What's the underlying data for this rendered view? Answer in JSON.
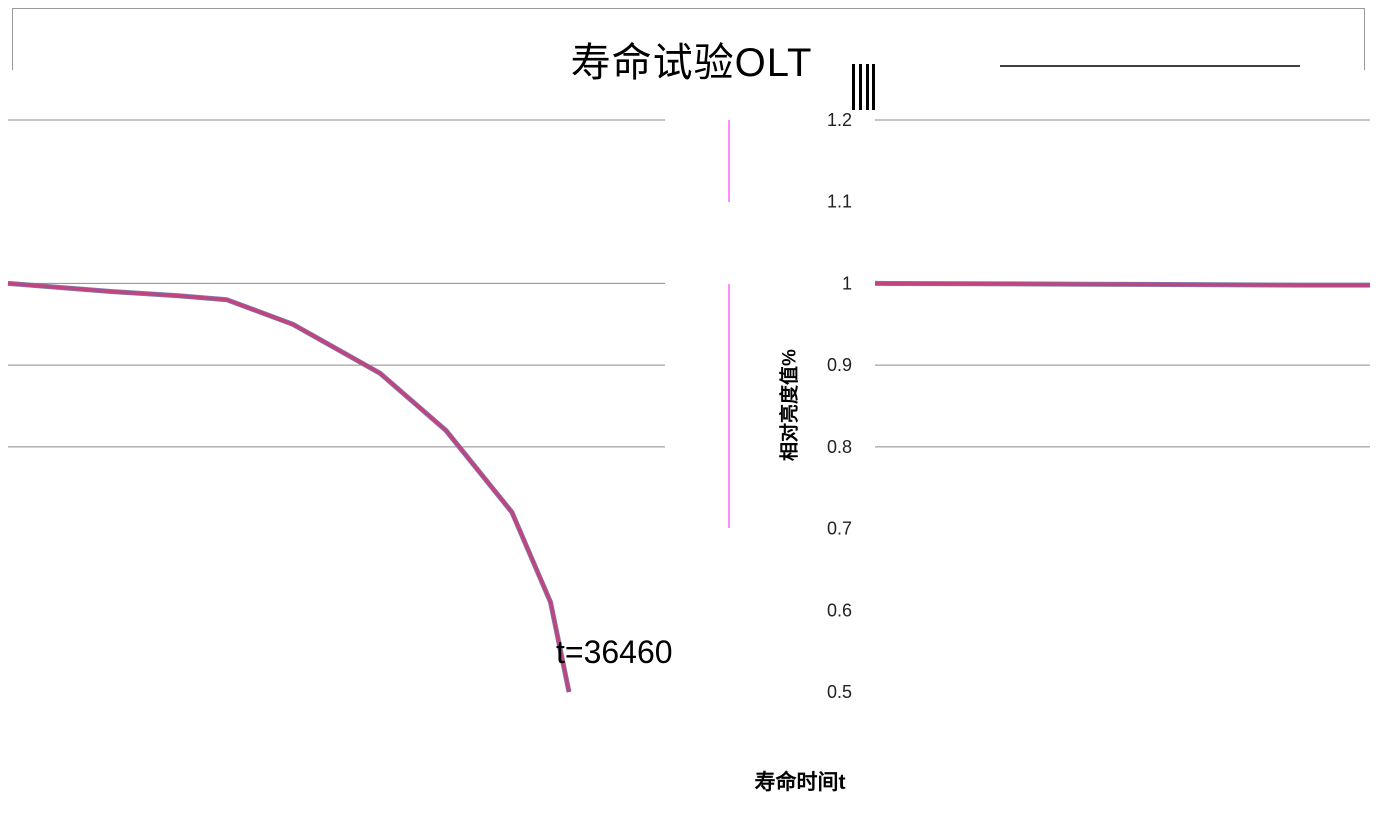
{
  "title": "寿命试验OLT",
  "annotation": "t=36460",
  "colors": {
    "series": "#c0447f",
    "shadow": "#7a7fb0",
    "grid": "#8c8c8c",
    "divider": "#ff66ff"
  },
  "chart_data": [
    {
      "type": "line",
      "panel": "left",
      "xscale": "log",
      "x": [
        100,
        300,
        600,
        1000,
        2000,
        5000,
        10000,
        20000,
        30000,
        36460
      ],
      "series": [
        {
          "values": [
            1.0,
            0.99,
            0.985,
            0.98,
            0.95,
            0.89,
            0.82,
            0.72,
            0.61,
            0.5
          ]
        }
      ],
      "ylim": [
        0.5,
        1.2
      ]
    },
    {
      "type": "line",
      "panel": "right",
      "xscale": "log",
      "title": "",
      "ylabel": "相对亮度值%",
      "xlabel": "寿命时间t",
      "yticks": [
        "1.2",
        "1.1",
        "1",
        "0.9",
        "0.8",
        "0.7",
        "0.6",
        "0.5"
      ],
      "xlim": [
        1,
        200
      ],
      "ylim": [
        0.5,
        1.2
      ],
      "x": [
        1,
        10,
        100,
        200
      ],
      "series": [
        {
          "values": [
            1.0,
            0.999,
            0.998,
            0.998
          ]
        }
      ]
    }
  ]
}
